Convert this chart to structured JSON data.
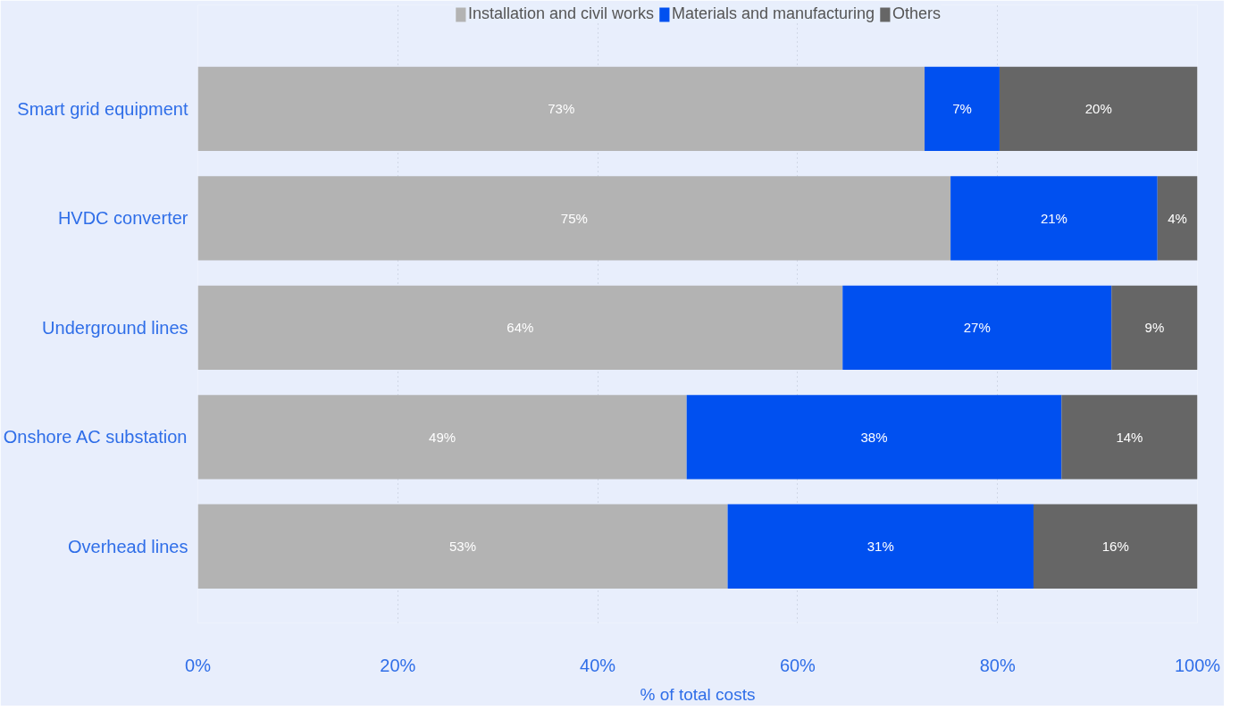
{
  "chart_data": {
    "type": "bar",
    "orientation": "horizontal",
    "stacked": true,
    "categories": [
      "Smart grid equipment",
      "HVDC converter",
      "Underground lines",
      "Onshore AC substation",
      "Overhead lines"
    ],
    "series": [
      {
        "name": "Installation and civil works",
        "color": "#b3b3b3",
        "values": [
          72.7,
          75.3,
          64.5,
          48.9,
          53.0
        ],
        "value_labels": [
          "73%",
          "75%",
          "64%",
          "49%",
          "53%"
        ]
      },
      {
        "name": "Materials and manufacturing",
        "color": "#0050f0",
        "values": [
          7.5,
          20.7,
          26.9,
          37.5,
          30.6
        ],
        "value_labels": [
          "7%",
          "21%",
          "27%",
          "38%",
          "31%"
        ]
      },
      {
        "name": "Others",
        "color": "#666666",
        "values": [
          19.8,
          4.0,
          8.6,
          13.6,
          16.4
        ],
        "value_labels": [
          "20%",
          "4%",
          "9%",
          "14%",
          "16%"
        ]
      }
    ],
    "xlim": [
      0,
      100
    ],
    "xticks": [
      {
        "value": 0,
        "label": "0%"
      },
      {
        "value": 20,
        "label": "20%"
      },
      {
        "value": 40,
        "label": "40%"
      },
      {
        "value": 60,
        "label": "60%"
      },
      {
        "value": 80,
        "label": "80%"
      },
      {
        "value": 100,
        "label": "100%"
      }
    ],
    "xlabel": "% of total costs",
    "grid": "x",
    "legend": "top"
  }
}
